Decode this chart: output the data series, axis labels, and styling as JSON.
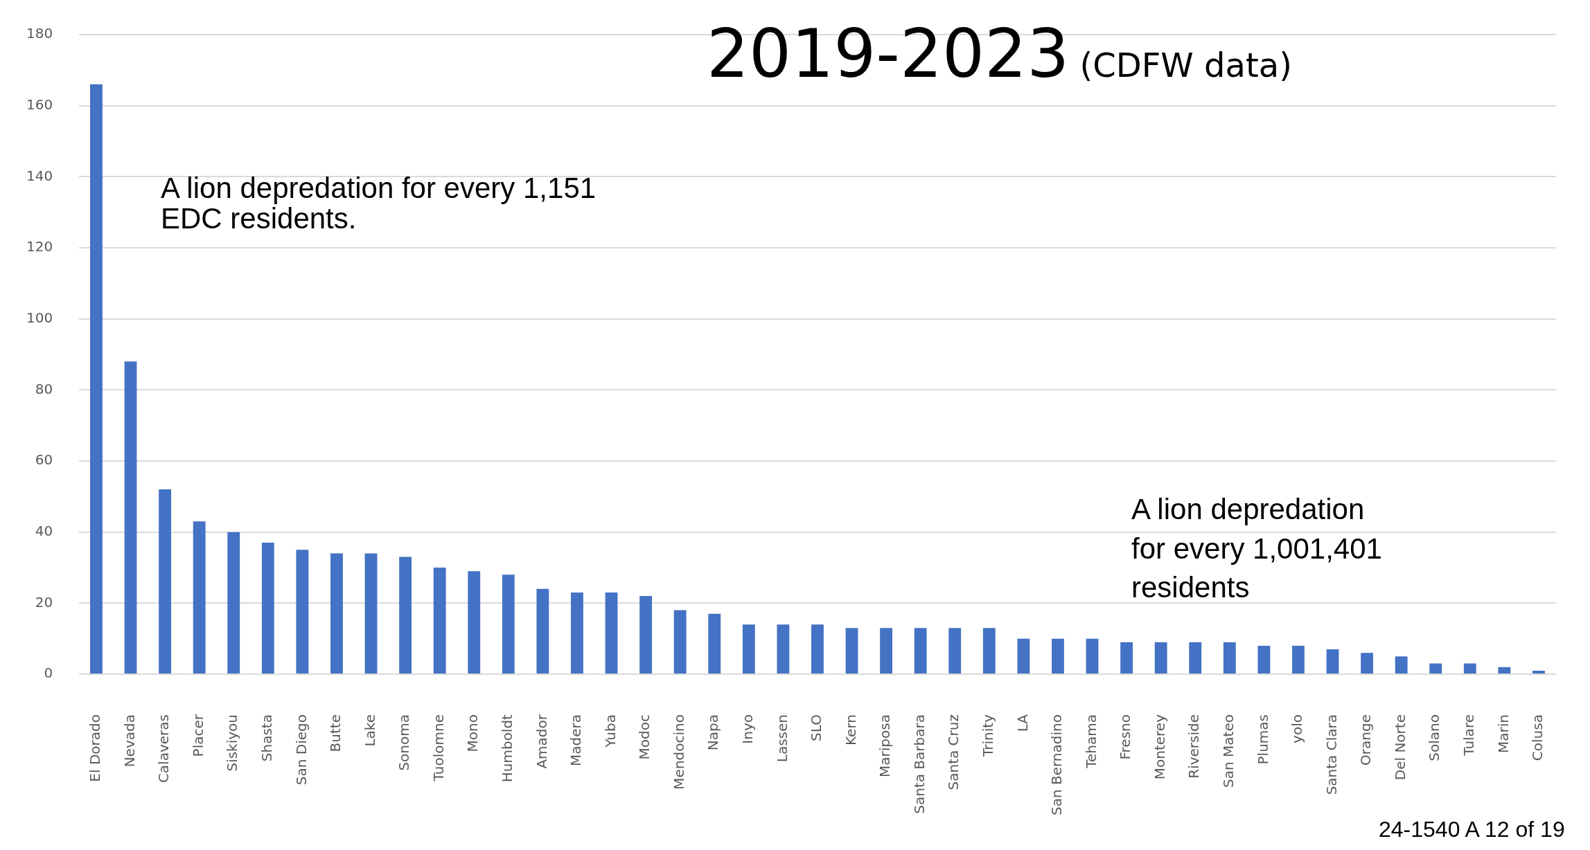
{
  "chart_data": {
    "type": "bar",
    "title": "2019-2023",
    "subtitle": "(CDFW data)",
    "categories": [
      "El Dorado",
      "Nevada",
      "Calaveras",
      "Placer",
      "Siskiyou",
      "Shasta",
      "San Diego",
      "Butte",
      "Lake",
      "Sonoma",
      "Tuolomne",
      "Mono",
      "Humboldt",
      "Amador",
      "Madera",
      "Yuba",
      "Modoc",
      "Mendocino",
      "Napa",
      "Inyo",
      "Lassen",
      "SLO",
      "Kern",
      "Mariposa",
      "Santa Barbara",
      "Santa Cruz",
      "Trinity",
      "LA",
      "San Bernadino",
      "Tehama",
      "Fresno",
      "Monterey",
      "Riverside",
      "San Mateo",
      "Plumas",
      "yolo",
      "Santa Clara",
      "Orange",
      "Del Norte",
      "Solano",
      "Tulare",
      "Marin",
      "Colusa"
    ],
    "values": [
      166,
      88,
      52,
      43,
      40,
      37,
      35,
      34,
      34,
      33,
      30,
      29,
      28,
      24,
      23,
      23,
      22,
      18,
      17,
      14,
      14,
      14,
      13,
      13,
      13,
      13,
      13,
      10,
      10,
      10,
      9,
      9,
      9,
      9,
      8,
      8,
      7,
      6,
      5,
      3,
      3,
      2,
      1
    ],
    "color": "#4472c4",
    "ylim": [
      0,
      180
    ],
    "yticks": [
      0,
      20,
      40,
      60,
      80,
      100,
      120,
      140,
      160,
      180
    ],
    "grid": "y",
    "annotations": [
      "A lion depredation for every 1,151\nEDC residents.",
      "A lion depredation\nfor every 1,001,401\nresidents",
      "24-1540 A 12 of 19"
    ]
  }
}
